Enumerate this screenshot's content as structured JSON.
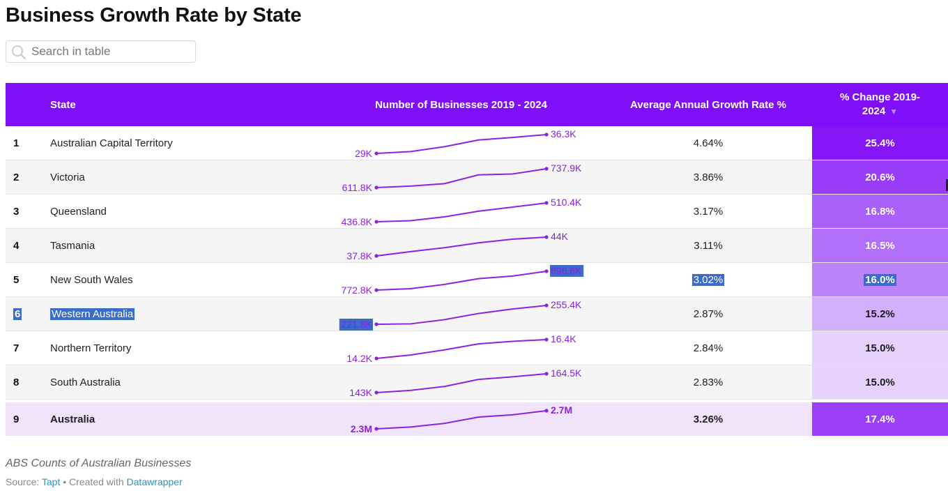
{
  "title": "Business Growth Rate by State",
  "search": {
    "placeholder": "Search in table",
    "icon": "search-icon"
  },
  "colors": {
    "header_bg": "#7f0ff8",
    "sparkline": "#8a22e0",
    "total_row_bg": "#f1e3fa",
    "selection": "#3b6ccb",
    "link": "#2795c4"
  },
  "table": {
    "columns": [
      "State",
      "Number of Businesses 2019 - 2024",
      "Average Annual Growth Rate %",
      "% Change 2019-2024"
    ],
    "sort": {
      "column": "% Change 2019-2024",
      "direction": "descending",
      "icon": "sort-down-icon"
    },
    "rows": [
      {
        "rank": "1",
        "state": "Australian Capital Territory",
        "start_label": "29K",
        "end_label": "36.3K",
        "spark": [
          29.0,
          29.7,
          31.6,
          34.2,
          35.2,
          36.3
        ],
        "avg": "4.64%",
        "pct": "25.4%",
        "pct_color": "#8514f7",
        "pct_text_color": "#ffffff"
      },
      {
        "rank": "2",
        "state": "Victoria",
        "start_label": "611.8K",
        "end_label": "737.9K",
        "spark": [
          611.8,
          622,
          638,
          697,
          703,
          737.9
        ],
        "avg": "3.86%",
        "pct": "20.6%",
        "pct_color": "#983cf8",
        "pct_text_color": "#ffffff"
      },
      {
        "rank": "3",
        "state": "Queensland",
        "start_label": "436.8K",
        "end_label": "510.4K",
        "spark": [
          436.8,
          441,
          456,
          478,
          494,
          510.4
        ],
        "avg": "3.17%",
        "pct": "16.8%",
        "pct_color": "#a960f9",
        "pct_text_color": "#ffffff"
      },
      {
        "rank": "4",
        "state": "Tasmania",
        "start_label": "37.8K",
        "end_label": "44K",
        "spark": [
          37.8,
          39.2,
          40.5,
          42.1,
          43.3,
          44.0
        ],
        "avg": "3.11%",
        "pct": "16.5%",
        "pct_color": "#b16ffa",
        "pct_text_color": "#ffffff"
      },
      {
        "rank": "5",
        "state": "New South Wales",
        "start_label": "772.8K",
        "end_label": "896.6K",
        "spark": [
          772.8,
          782,
          810,
          848,
          865,
          896.6
        ],
        "avg": "3.02%",
        "pct": "16.0%",
        "pct_color": "#bc84fb",
        "pct_text_color": "#ffffff",
        "selected": [
          "avg",
          "pct",
          "end"
        ]
      },
      {
        "rank": "6",
        "state": "Western Australia",
        "start_label": "221.8K",
        "end_label": "255.4K",
        "spark": [
          221.8,
          222.5,
          230,
          241,
          249,
          255.4
        ],
        "avg": "2.87%",
        "pct": "15.2%",
        "pct_color": "#d3b0fc",
        "pct_text_color": "#1a1a1a",
        "selected": [
          "rank",
          "state",
          "start"
        ]
      },
      {
        "rank": "7",
        "state": "Northern Territory",
        "start_label": "14.2K",
        "end_label": "16.4K",
        "spark": [
          14.2,
          14.6,
          15.2,
          15.9,
          16.2,
          16.4
        ],
        "avg": "2.84%",
        "pct": "15.0%",
        "pct_color": "#e7d2fd",
        "pct_text_color": "#1a1a1a"
      },
      {
        "rank": "8",
        "state": "South Australia",
        "start_label": "143K",
        "end_label": "164.5K",
        "spark": [
          143,
          145.5,
          150,
          158,
          161,
          164.5
        ],
        "avg": "2.83%",
        "pct": "15.0%",
        "pct_color": "#e7d2fd",
        "pct_text_color": "#1a1a1a"
      }
    ],
    "total": {
      "rank": "9",
      "state": "Australia",
      "start_label": "2.3M",
      "end_label": "2.7M",
      "spark": [
        2.3,
        2.34,
        2.42,
        2.56,
        2.61,
        2.7
      ],
      "avg": "3.26%",
      "pct": "17.4%",
      "pct_color": "#9b3ff8",
      "pct_text_color": "#ffffff"
    }
  },
  "footer": {
    "caption": "ABS Counts of Australian Businesses",
    "source_prefix": "Source:",
    "source_name": "Tapt",
    "separator": "•",
    "created_with": "Created with",
    "tool": "Datawrapper"
  }
}
